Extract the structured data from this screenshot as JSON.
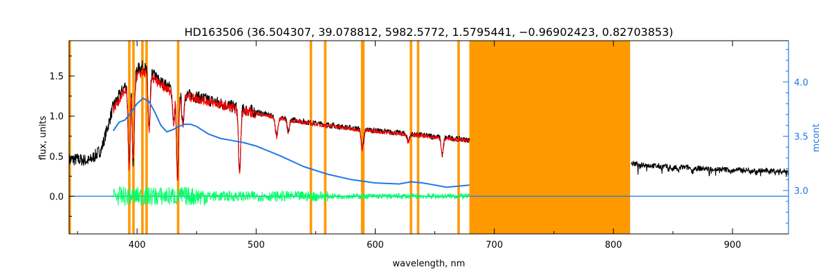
{
  "chart_data": {
    "type": "line",
    "title": "HD163506    (36.504307, 39.078812, 5982.5772, 1.5795441, −0.96902423, 0.82703853)",
    "xlabel": "wavelength, nm",
    "ylabel": "flux, units",
    "y2label": "mcont",
    "xlim": [
      343,
      947
    ],
    "ylim": [
      -0.47,
      1.94
    ],
    "y2lim": [
      2.6,
      4.38
    ],
    "x_ticks": [
      400,
      500,
      600,
      700,
      800,
      900
    ],
    "y_ticks": [
      0.0,
      0.5,
      1.0,
      1.5
    ],
    "y2_ticks": [
      3.0,
      3.5,
      4.0
    ],
    "x_tick_labels": [
      "400",
      "500",
      "600",
      "700",
      "800",
      "900"
    ],
    "y_tick_labels": [
      "0.0",
      "0.5",
      "1.0",
      "1.5"
    ],
    "y2_tick_labels": [
      "3.0",
      "3.5",
      "4.0"
    ],
    "grid": false,
    "legend": "none",
    "colors": {
      "observed": "#000000",
      "model": "#ff0000",
      "residual": "#00ff66",
      "continuum": "#1e78e6",
      "mask": "#ff9900",
      "axes": "#000000",
      "right_axis": "#1e78e6"
    },
    "mask_band": [
      679,
      814
    ],
    "mask_lines": [
      343.5,
      393.5,
      397,
      404.5,
      408,
      434.5,
      546,
      558,
      589,
      590,
      630,
      636,
      670
    ],
    "series": [
      {
        "id": "observed",
        "x": [
          343,
          350,
          360,
          370,
          376,
          380,
          385,
          390,
          395,
          400,
          405,
          410,
          415,
          420,
          430,
          440,
          450,
          460,
          470,
          480,
          490,
          500,
          520,
          540,
          560,
          580,
          600,
          620,
          640,
          660,
          679,
          815,
          820,
          840,
          860,
          880,
          900,
          920,
          947
        ],
        "y": [
          0.45,
          0.46,
          0.44,
          0.58,
          0.9,
          1.12,
          1.25,
          1.38,
          1.45,
          1.58,
          1.62,
          1.55,
          1.5,
          1.42,
          1.33,
          1.27,
          1.24,
          1.2,
          1.16,
          1.12,
          1.08,
          1.05,
          0.98,
          0.93,
          0.89,
          0.85,
          0.82,
          0.79,
          0.76,
          0.73,
          0.7,
          0.41,
          0.4,
          0.37,
          0.36,
          0.34,
          0.33,
          0.32,
          0.31
        ]
      },
      {
        "id": "model",
        "x": [
          380,
          385,
          390,
          395,
          400,
          405,
          410,
          415,
          420,
          430,
          440,
          450,
          460,
          470,
          480,
          490,
          500,
          520,
          540,
          560,
          580,
          600,
          620,
          640,
          660,
          679
        ],
        "y": [
          1.08,
          1.2,
          1.32,
          1.4,
          1.5,
          1.55,
          1.5,
          1.45,
          1.38,
          1.3,
          1.25,
          1.22,
          1.18,
          1.14,
          1.1,
          1.06,
          1.03,
          0.97,
          0.92,
          0.88,
          0.84,
          0.81,
          0.78,
          0.75,
          0.72,
          0.69
        ]
      },
      {
        "id": "residual",
        "x_range": [
          380,
          679
        ],
        "center": 0.0,
        "amplitude": 0.12
      },
      {
        "id": "continuum",
        "axis": "right",
        "x": [
          380,
          385,
          390,
          395,
          400,
          405,
          410,
          415,
          420,
          425,
          430,
          435,
          440,
          445,
          450,
          460,
          470,
          480,
          490,
          500,
          520,
          540,
          560,
          580,
          600,
          620,
          630,
          640,
          650,
          660,
          670,
          679
        ],
        "y": [
          3.55,
          3.63,
          3.65,
          3.72,
          3.8,
          3.85,
          3.82,
          3.72,
          3.6,
          3.54,
          3.56,
          3.59,
          3.61,
          3.61,
          3.59,
          3.52,
          3.48,
          3.46,
          3.44,
          3.41,
          3.32,
          3.22,
          3.15,
          3.1,
          3.07,
          3.06,
          3.08,
          3.07,
          3.05,
          3.03,
          3.04,
          3.05
        ]
      },
      {
        "id": "zero-line",
        "x": [
          343,
          380,
          679,
          815,
          947
        ],
        "y": [
          0.0,
          0.0,
          0.0,
          0.0,
          0.0
        ]
      }
    ],
    "absorption_lines": [
      {
        "x": 393.4,
        "depth": 0.75
      },
      {
        "x": 396.8,
        "depth": 0.7
      },
      {
        "x": 410.2,
        "depth": 0.45
      },
      {
        "x": 430.8,
        "depth": 0.3
      },
      {
        "x": 434.0,
        "depth": 0.85
      },
      {
        "x": 438.4,
        "depth": 0.3
      },
      {
        "x": 486.1,
        "depth": 0.75
      },
      {
        "x": 516.8,
        "depth": 0.2
      },
      {
        "x": 517.3,
        "depth": 0.25
      },
      {
        "x": 527.0,
        "depth": 0.18
      },
      {
        "x": 589.0,
        "depth": 0.28
      },
      {
        "x": 589.6,
        "depth": 0.25
      },
      {
        "x": 627.7,
        "depth": 0.12
      },
      {
        "x": 656.3,
        "depth": 0.3
      },
      {
        "x": 687.0,
        "depth": 0.0
      },
      {
        "x": 822.0,
        "depth": 0.08
      },
      {
        "x": 849.8,
        "depth": 0.1
      },
      {
        "x": 854.2,
        "depth": 0.14
      },
      {
        "x": 866.2,
        "depth": 0.12
      },
      {
        "x": 899.0,
        "depth": 0.08
      },
      {
        "x": 920.0,
        "depth": 0.08
      }
    ]
  }
}
